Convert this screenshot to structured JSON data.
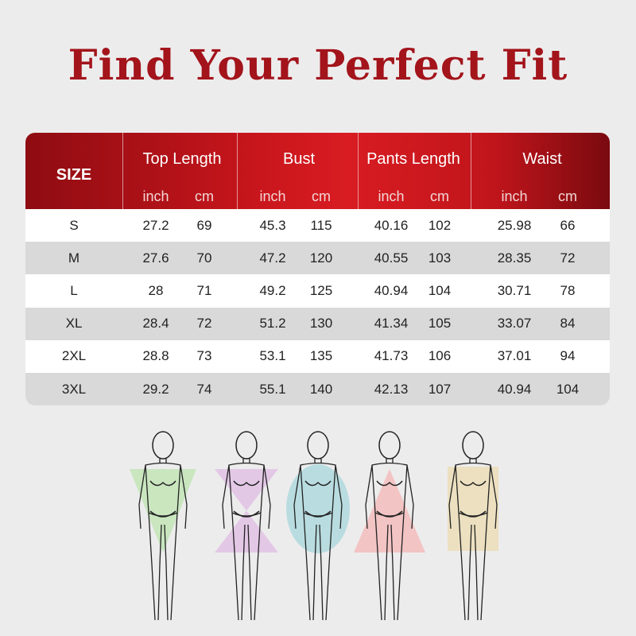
{
  "title": "Find Your Perfect Fit",
  "table": {
    "size_header": "SIZE",
    "groups": [
      {
        "label": "Top Length"
      },
      {
        "label": "Bust"
      },
      {
        "label": "Pants Length"
      },
      {
        "label": "Waist"
      }
    ],
    "unit_inch": "inch",
    "unit_cm": "cm",
    "rows": [
      [
        "S",
        "27.2",
        "69",
        "45.3",
        "115",
        "40.16",
        "102",
        "25.98",
        "66"
      ],
      [
        "M",
        "27.6",
        "70",
        "47.2",
        "120",
        "40.55",
        "103",
        "28.35",
        "72"
      ],
      [
        "L",
        "28",
        "71",
        "49.2",
        "125",
        "40.94",
        "104",
        "30.71",
        "78"
      ],
      [
        "XL",
        "28.4",
        "72",
        "51.2",
        "130",
        "41.34",
        "105",
        "33.07",
        "84"
      ],
      [
        "2XL",
        "28.8",
        "73",
        "53.1",
        "135",
        "41.73",
        "106",
        "37.01",
        "94"
      ],
      [
        "3XL",
        "29.2",
        "74",
        "55.1",
        "140",
        "42.13",
        "107",
        "40.94",
        "104"
      ]
    ]
  },
  "colors": {
    "accent": "#c8161c",
    "title": "#a3141b",
    "shape_colors": [
      "#c9e6bf",
      "#e3c8e6",
      "#b9dce0",
      "#f2c4c4",
      "#ece0c0"
    ]
  },
  "figures": [
    "inverted-triangle-body-icon",
    "hourglass-body-icon",
    "apple-body-icon",
    "pear-body-icon",
    "rectangle-body-icon"
  ]
}
